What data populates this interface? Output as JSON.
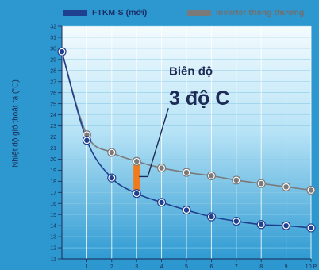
{
  "chart_data": {
    "type": "line",
    "title": "",
    "xlabel": "",
    "ylabel": "Nhiệt độ gió thoát ra (°C)",
    "x": [
      0,
      1,
      2,
      3,
      4,
      5,
      6,
      7,
      8,
      9,
      10
    ],
    "x_tick_labels": [
      "1",
      "2",
      "3",
      "4",
      "5",
      "6",
      "7",
      "8",
      "9",
      "10 P"
    ],
    "y_tick_labels": [
      "11",
      "12",
      "13",
      "14",
      "15",
      "16",
      "17",
      "18",
      "19",
      "20",
      "21",
      "22",
      "23",
      "24",
      "25",
      "26",
      "27",
      "28",
      "29",
      "30",
      "31",
      "32"
    ],
    "xlim": [
      0,
      10
    ],
    "ylim": [
      11,
      32
    ],
    "grid": true,
    "legend_position": "top",
    "series": [
      {
        "name": "FTKM-S (mới)",
        "color": "#1f3f8f",
        "values": [
          29.7,
          21.7,
          18.3,
          16.9,
          16.1,
          15.4,
          14.8,
          14.4,
          14.1,
          14.0,
          13.8
        ]
      },
      {
        "name": "Inverter thông thường",
        "color": "#7a7a7a",
        "values": [
          29.7,
          22.2,
          20.6,
          19.8,
          19.2,
          18.8,
          18.5,
          18.1,
          17.8,
          17.5,
          17.2
        ]
      }
    ],
    "annotation": {
      "line1": "Biên độ",
      "line2": "3 độ C",
      "x": 3,
      "from": 16.9,
      "to": 19.8,
      "color": "#f07a1e"
    }
  }
}
